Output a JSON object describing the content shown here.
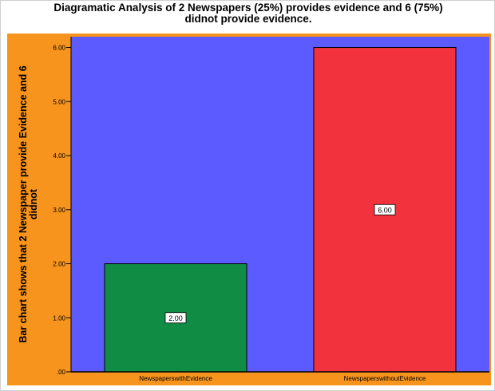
{
  "colors": {
    "panel_bg": "#f7941d",
    "plot_bg": "#5b5bff",
    "bar_1": "#118c45",
    "bar_2": "#f2323c"
  },
  "chart_data": {
    "type": "bar",
    "title_lines": [
      "Diagramatic Analysis of 2 Newspapers (25%) provides evidence and 6 (75%)",
      "didnot provide evidence."
    ],
    "ylabel_lines": [
      "Bar chart shows that 2 Newspaper provide Evidence and 6",
      "didnot"
    ],
    "xlabel": "",
    "categories": [
      "NewspaperswithEvidence",
      "NewspaperswithoutEvidence"
    ],
    "values": [
      2.0,
      6.0
    ],
    "data_labels": [
      "2.00",
      "6.00"
    ],
    "bar_colors": [
      "#118c45",
      "#f2323c"
    ],
    "ylim": [
      0,
      6.2
    ],
    "yticks": [
      0,
      1,
      2,
      3,
      4,
      5,
      6
    ],
    "ytick_labels": [
      ".00",
      "1.00",
      "2.00",
      "3.00",
      "4.00",
      "5.00",
      "6.00"
    ],
    "grid": false,
    "legend": "none"
  }
}
